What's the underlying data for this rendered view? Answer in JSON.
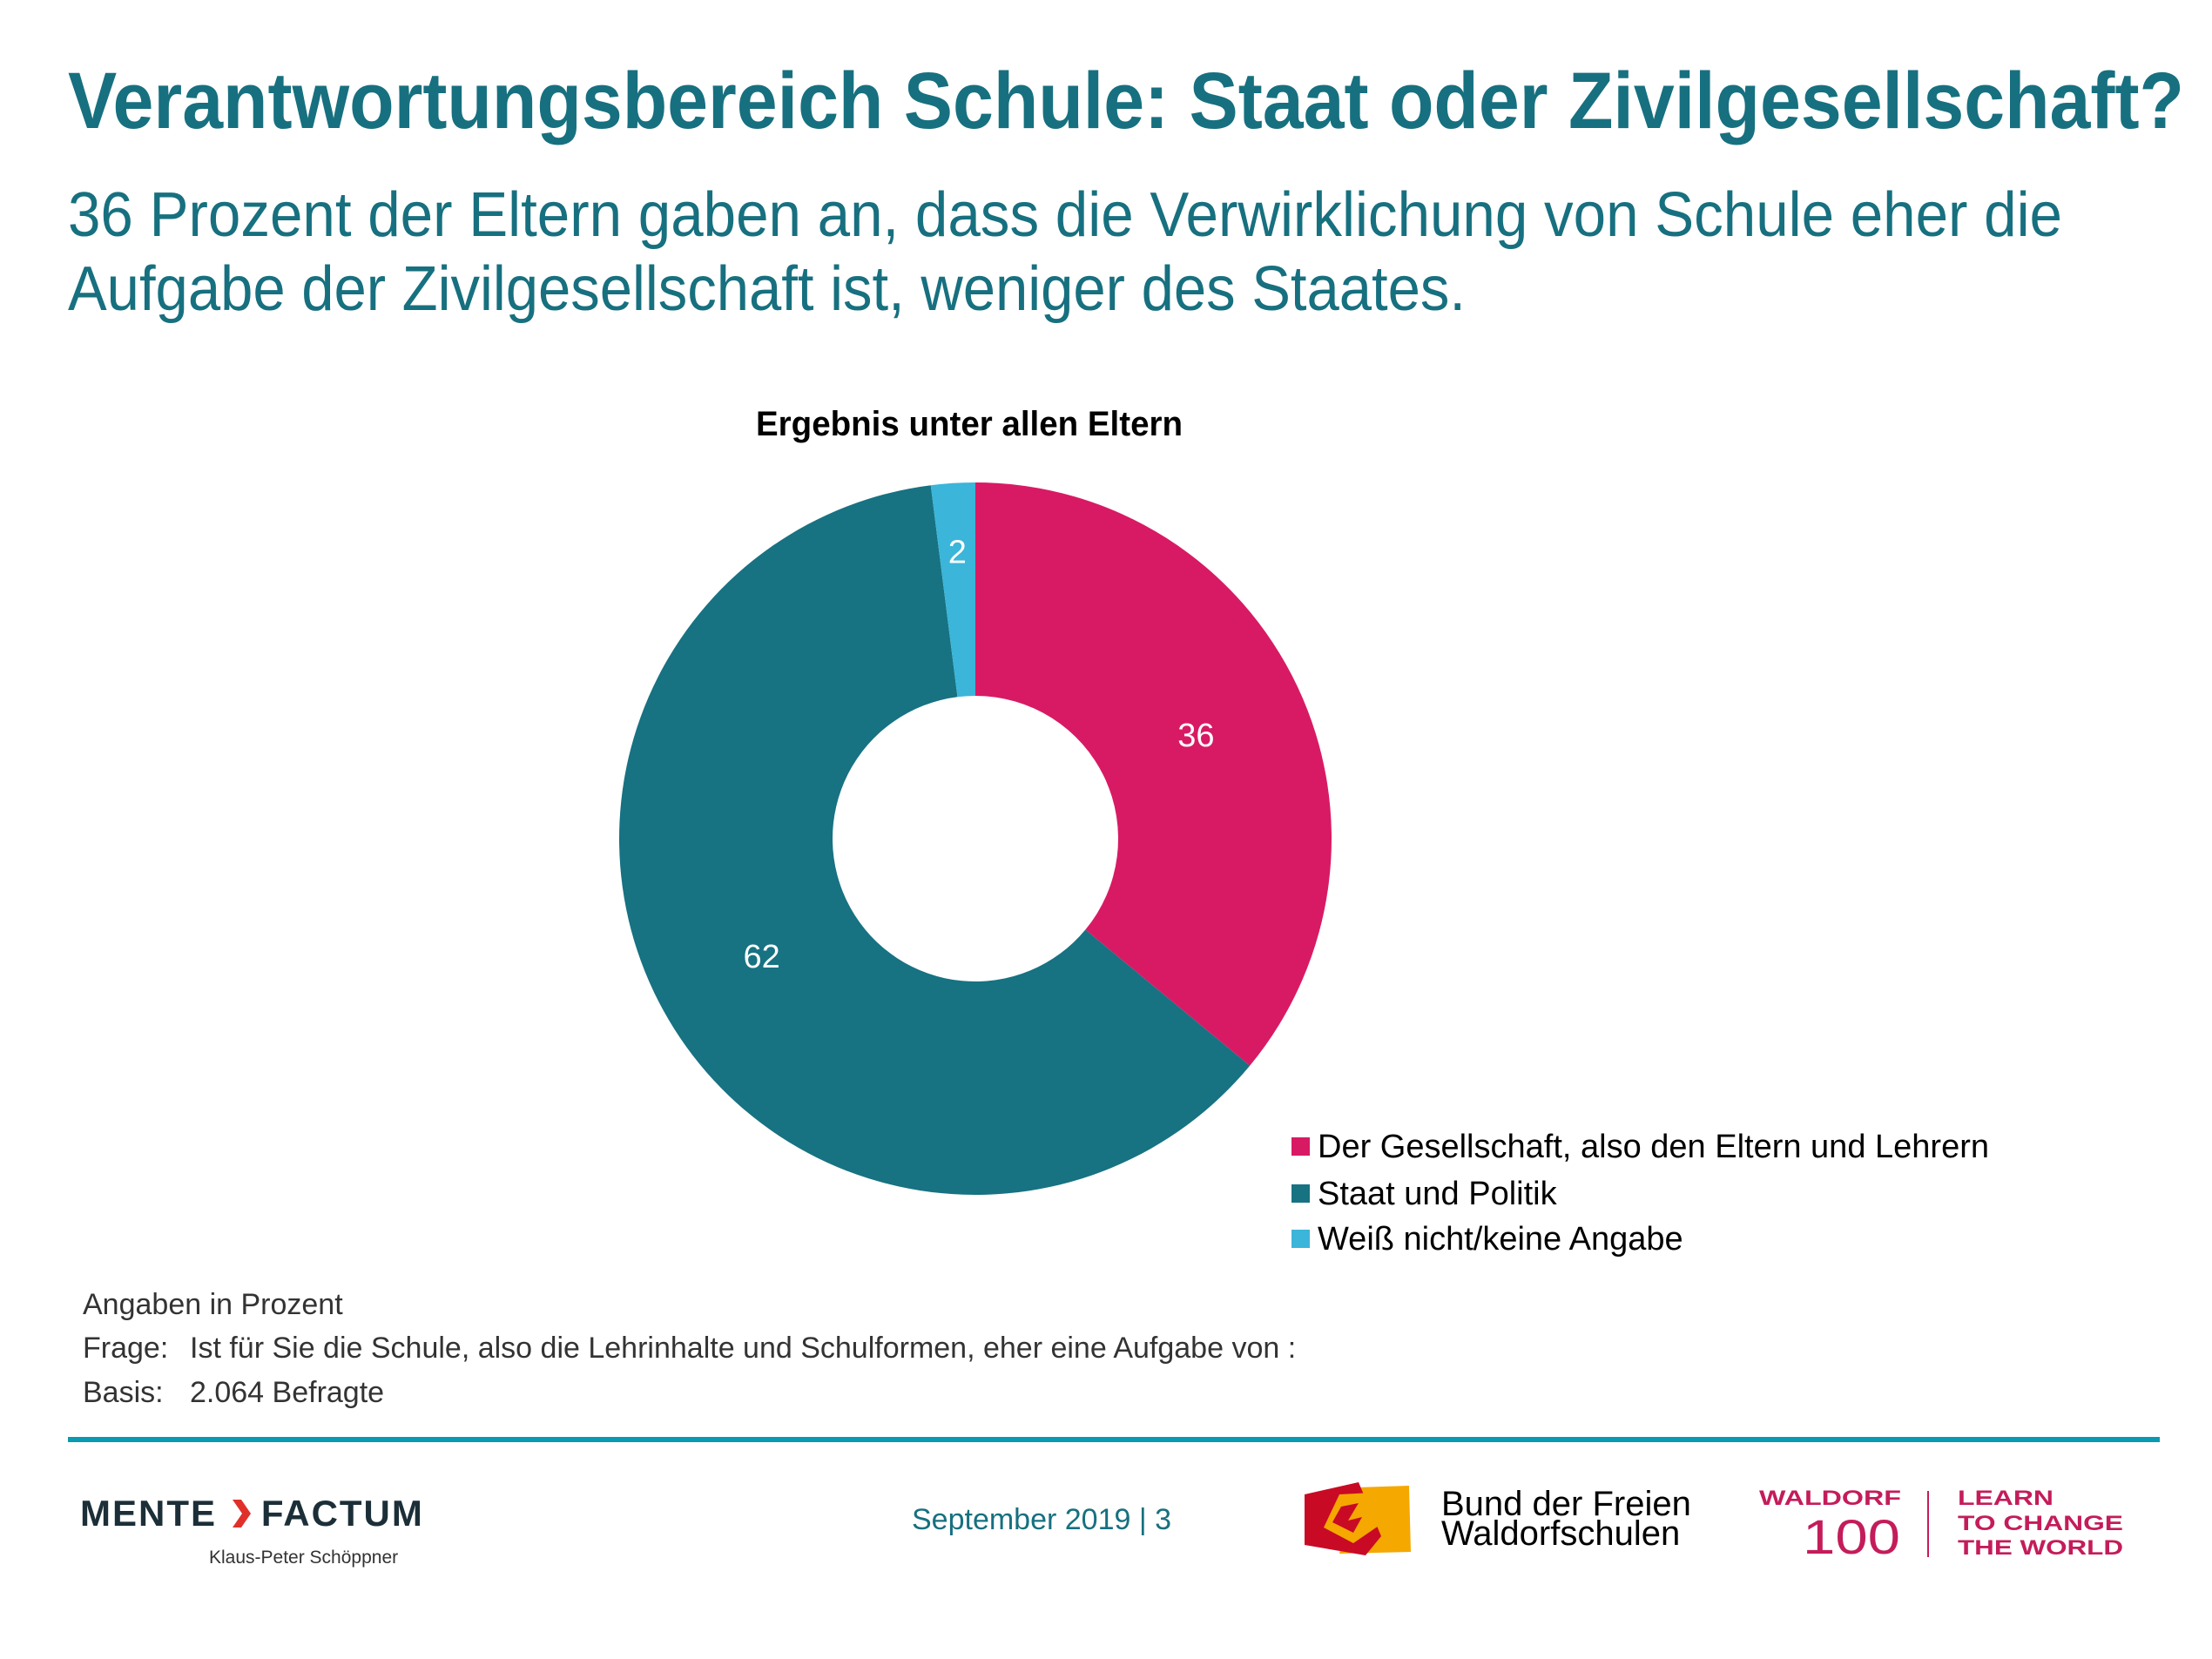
{
  "header": {
    "title": "Verantwortungsbereich Schule: Staat oder Zivilgesellschaft?",
    "subtitle_line1": "36 Prozent der Eltern gaben an, dass die Verwirklichung von Schule eher die",
    "subtitle_line2": "Aufgabe der Zivilgesellschaft ist, weniger des Staates."
  },
  "chart_data": {
    "type": "pie",
    "variant": "donut",
    "title": "Ergebnis unter allen Eltern",
    "categories": [
      "Der Gesellschaft, also den Eltern und Lehrern",
      "Staat und Politik",
      "Weiß nicht/keine Angabe"
    ],
    "values": [
      36,
      62,
      2
    ],
    "labels": [
      "36",
      "62",
      "2"
    ],
    "colors": [
      "#d81a64",
      "#177282",
      "#3bb5d9"
    ],
    "start_angle": "12 o'clock",
    "direction": "clockwise",
    "unit": "Prozent",
    "legend_position": "bottom-right"
  },
  "notes": {
    "unit_note": "Angaben in Prozent",
    "question_label": "Frage:",
    "question_text": "Ist für Sie die Schule, also die Lehrinhalte und Schulformen, eher eine Aufgabe von :",
    "basis_label": "Basis:",
    "basis_text": "2.064 Befragte"
  },
  "footer": {
    "mente_word1": "MENTE",
    "mente_word2": "FACTUM",
    "mente_author": "Klaus-Peter Schöppner",
    "date_page": "September 2019 | 3",
    "bund_line1": "Bund der Freien",
    "bund_line2": "Waldorfschulen",
    "waldorf_word": "WALDORF",
    "waldorf_number": "100",
    "slogan_line1": "LEARN",
    "slogan_line2": "TO CHANGE",
    "slogan_line3": "THE WORLD",
    "colors": {
      "rule": "#0a9ab2",
      "mente_dark": "#1c2f38",
      "mente_chevron": "#e0302a",
      "bund_red": "#c90a25",
      "bund_yellow": "#f5a800",
      "waldorf_magenta": "#c41c5a"
    }
  }
}
